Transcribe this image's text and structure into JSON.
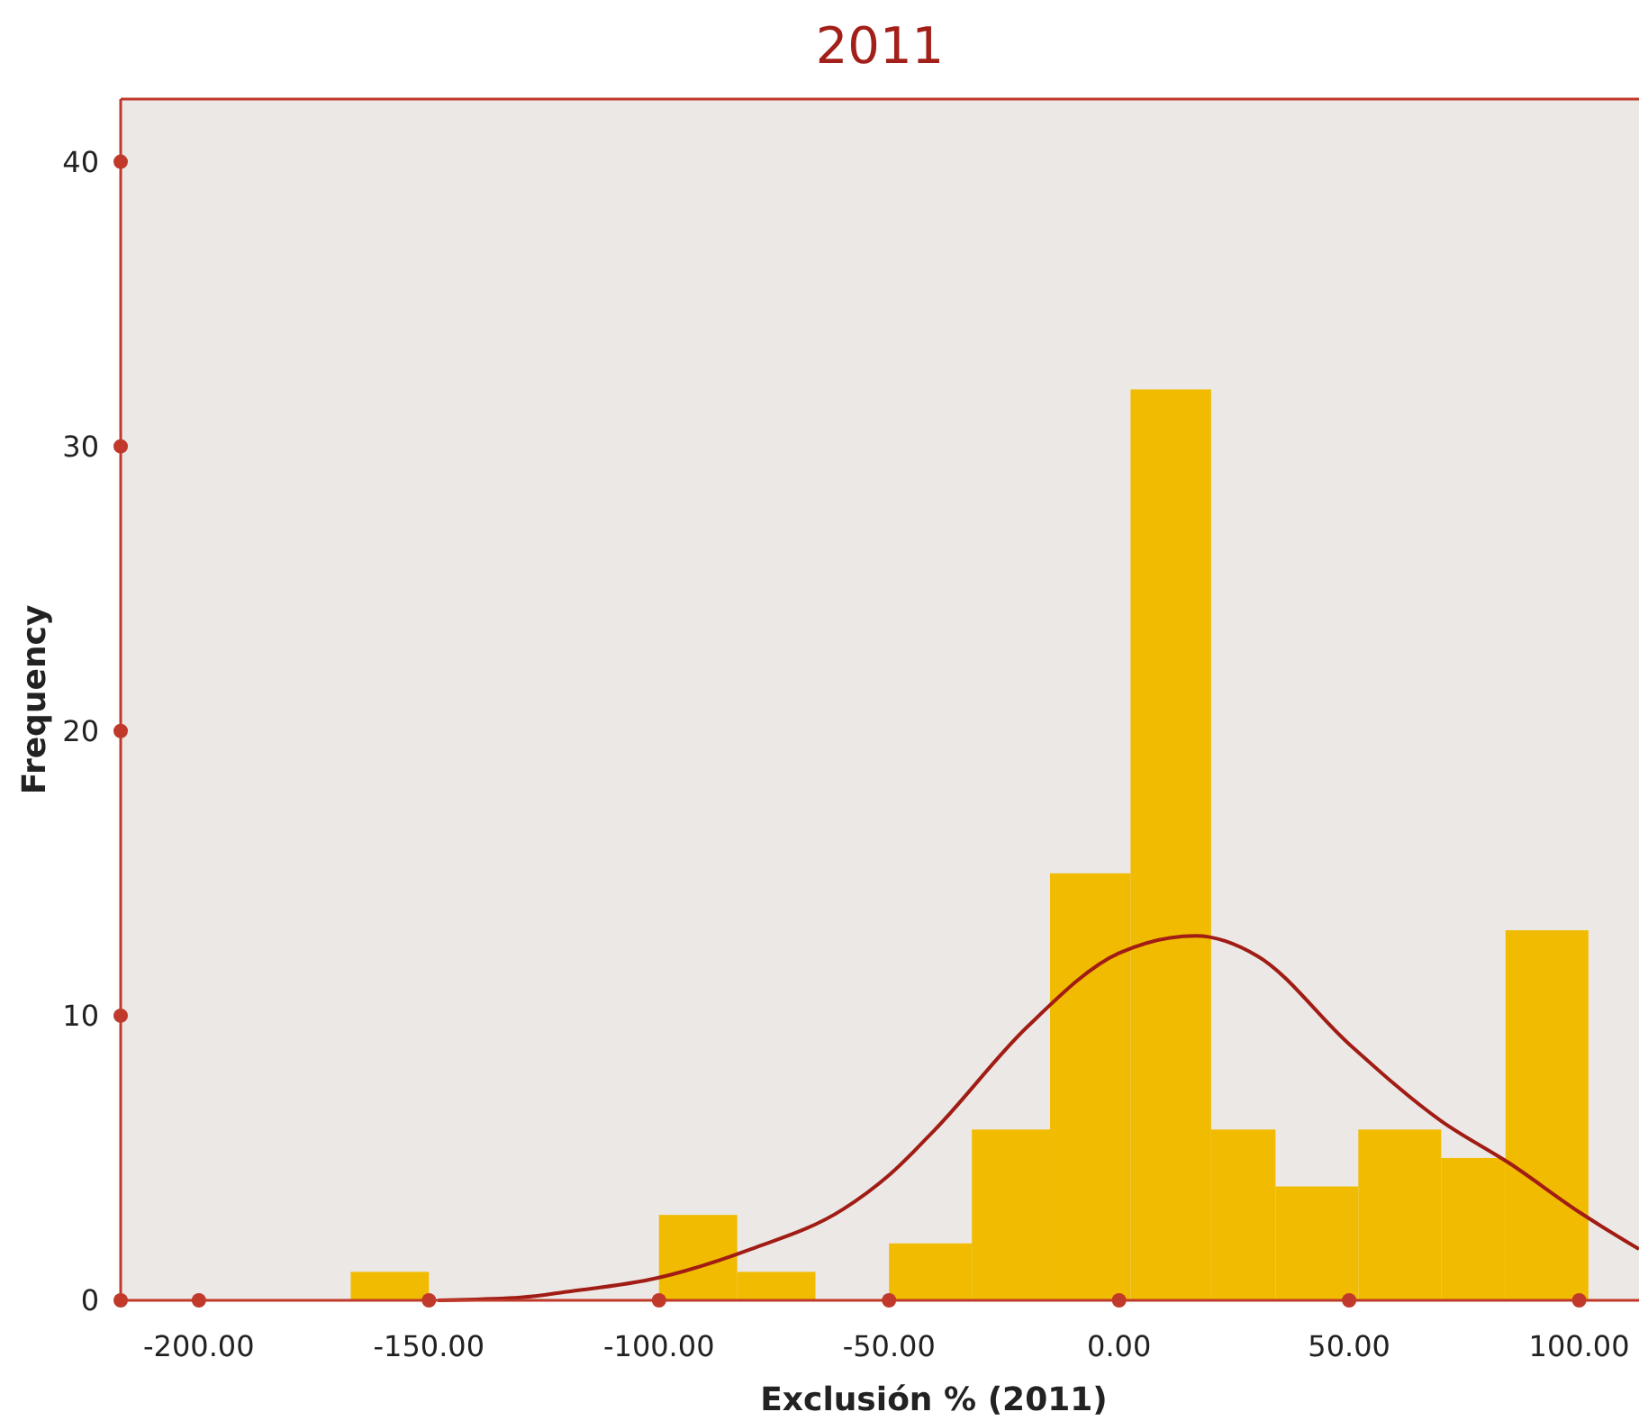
{
  "chart_data": {
    "type": "histogram",
    "title": "2011",
    "xlabel": "Exclusión % (2011)",
    "ylabel": "Frequency",
    "bins": [
      -167,
      -150,
      -100,
      -83,
      -66,
      -50,
      -32,
      -15,
      2.5,
      20,
      34,
      52,
      70,
      84,
      102
    ],
    "values": [
      1,
      0,
      3,
      1,
      0,
      2,
      6,
      15,
      32,
      6,
      4,
      6,
      5,
      13
    ],
    "color": "#f0bb00",
    "series": [
      {
        "type": "line",
        "color": "#a01c14",
        "x": [
          -148,
          -130,
          -120,
          -100,
          -80,
          -60,
          -50,
          -40,
          -20,
          0,
          16.7,
          30,
          50,
          70,
          85,
          100,
          113
        ],
        "values": [
          0,
          0.1,
          0.3,
          0.8,
          1.8,
          3.2,
          4.4,
          6,
          9.6,
          12.2,
          12.8,
          12.1,
          9,
          6.3,
          4.8,
          3.1,
          1.8
        ]
      }
    ],
    "xlim": [
      -217,
      113
    ],
    "ylim": [
      0,
      42.2
    ],
    "xticks": [
      {
        "value": -200,
        "label": "-200.00"
      },
      {
        "value": -150,
        "label": "-150.00"
      },
      {
        "value": -100,
        "label": "-100.00"
      },
      {
        "value": -50,
        "label": "-50.00"
      },
      {
        "value": 0,
        "label": "0.00"
      },
      {
        "value": 50,
        "label": "50.00"
      },
      {
        "value": 100,
        "label": "100.00"
      }
    ],
    "yticks": [
      0,
      10,
      20,
      30,
      40
    ]
  }
}
